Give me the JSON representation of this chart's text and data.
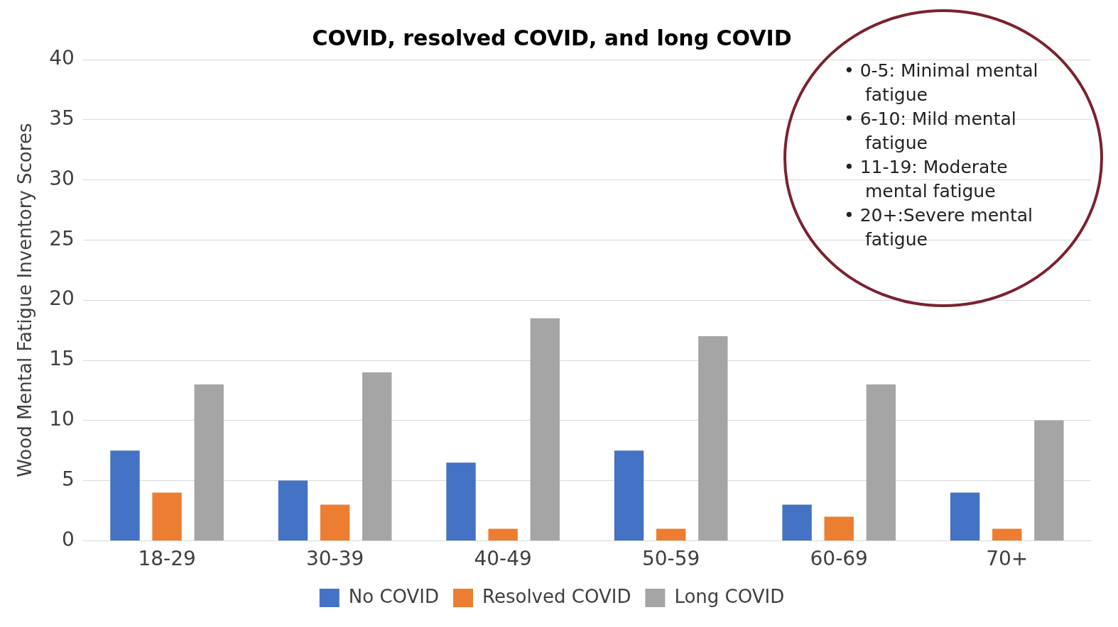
{
  "chart_data": {
    "type": "bar",
    "title": "COVID, resolved COVID, and long COVID",
    "ylabel": "Wood Mental Fatigue Inventory Scores",
    "categories": [
      "18-29",
      "30-39",
      "40-49",
      "50-59",
      "60-69",
      "70+"
    ],
    "series": [
      {
        "name": "No COVID",
        "color": "#4472c4",
        "values": [
          7.5,
          5,
          6.5,
          7.5,
          3,
          4
        ]
      },
      {
        "name": "Resolved COVID",
        "color": "#ed7d31",
        "values": [
          4,
          3,
          1,
          1,
          2,
          1
        ]
      },
      {
        "name": "Long COVID",
        "color": "#a5a5a5",
        "values": [
          13,
          14,
          18.5,
          17,
          13,
          10
        ]
      }
    ],
    "ylim": [
      0,
      40
    ],
    "yticks": [
      0,
      5,
      10,
      15,
      20,
      25,
      30,
      35,
      40
    ],
    "grid": "y",
    "legend": "bottom",
    "annotations": [
      "• 0-5: Minimal mental fatigue",
      "• 6-10: Mild mental fatigue",
      "• 11-19: Moderate mental fatigue",
      "• 20+:Severe mental fatigue"
    ]
  }
}
